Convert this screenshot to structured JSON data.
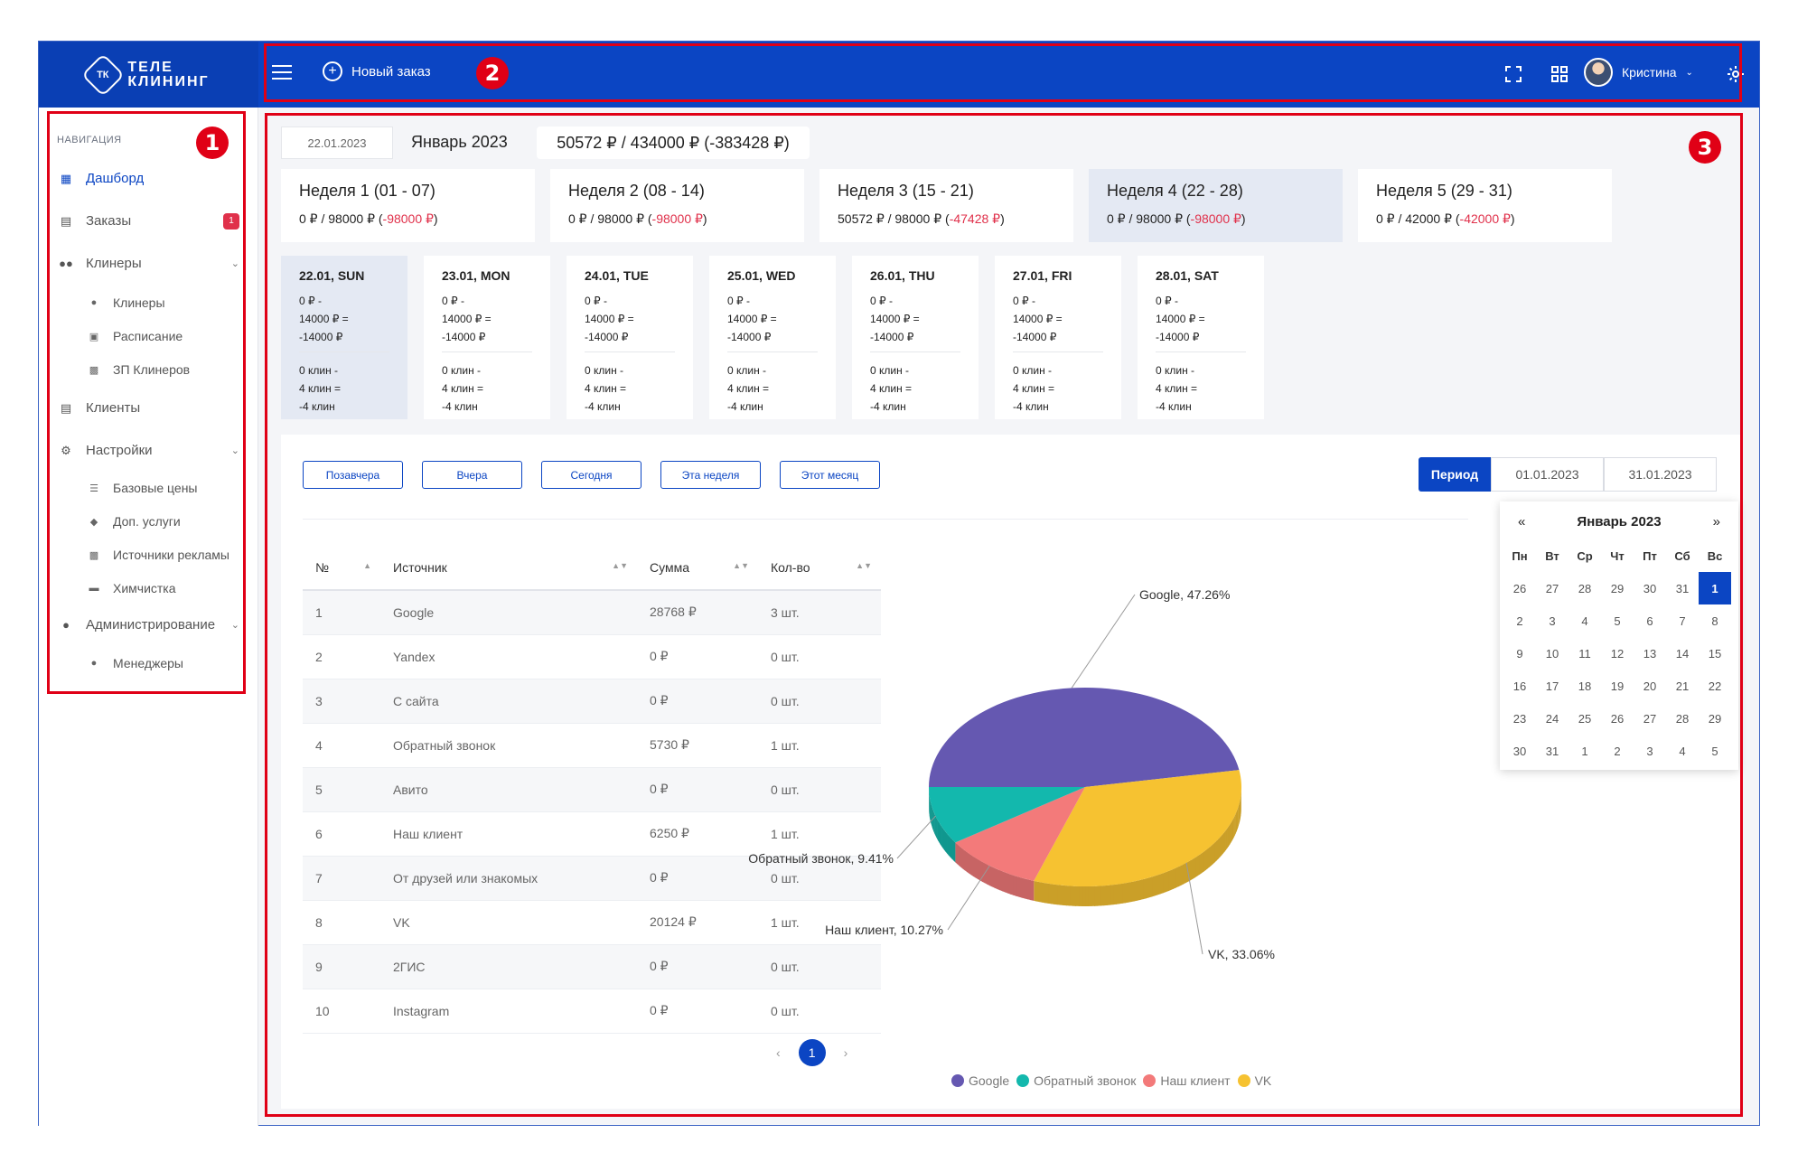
{
  "header": {
    "logo_mark": "ТК",
    "logo_line1": "ТЕЛЕ",
    "logo_line2": "КЛИНИНГ",
    "new_order": "Новый заказ",
    "user_name": "Кристина"
  },
  "sidebar": {
    "title": "НАВИГАЦИЯ",
    "dashboard": "Дашборд",
    "orders": "Заказы",
    "orders_badge": "1",
    "cleaners": "Клинеры",
    "cleaners_sub": [
      "Клинеры",
      "Расписание",
      "ЗП Клинеров"
    ],
    "clients": "Клиенты",
    "settings": "Настройки",
    "settings_sub": [
      "Базовые цены",
      "Доп. услуги",
      "Источники рекламы",
      "Химчистка"
    ],
    "admin": "Администрирование",
    "admin_sub": [
      "Менеджеры"
    ]
  },
  "summary": {
    "date": "22.01.2023",
    "month": "Январь 2023",
    "total": "50572 ₽ / 434000 ₽ (-383428 ₽)"
  },
  "weeks": [
    {
      "title": "Неделя 1 (01 - 07)",
      "value": "0 ₽ / 98000 ₽ (",
      "diff": "-98000 ₽",
      "close": ")"
    },
    {
      "title": "Неделя 2 (08 - 14)",
      "value": "0 ₽ / 98000 ₽ (",
      "diff": "-98000 ₽",
      "close": ")"
    },
    {
      "title": "Неделя 3 (15 - 21)",
      "value": "50572 ₽ / 98000 ₽ (",
      "diff": "-47428 ₽",
      "close": ")"
    },
    {
      "title": "Неделя 4 (22 - 28)",
      "value": "0 ₽ / 98000 ₽ (",
      "diff": "-98000 ₽",
      "close": ")"
    },
    {
      "title": "Неделя 5 (29 - 31)",
      "value": "0 ₽ / 42000 ₽ (",
      "diff": "-42000 ₽",
      "close": ")"
    }
  ],
  "days": [
    {
      "title": "22.01, SUN",
      "l1": "0 ₽ -",
      "l2": "14000 ₽ =",
      "l3": "-14000 ₽",
      "l4": "0 клин -",
      "l5": "4 клин =",
      "l6": "-4 клин"
    },
    {
      "title": "23.01, MON",
      "l1": "0 ₽ -",
      "l2": "14000 ₽ =",
      "l3": "-14000 ₽",
      "l4": "0 клин -",
      "l5": "4 клин =",
      "l6": "-4 клин"
    },
    {
      "title": "24.01, TUE",
      "l1": "0 ₽ -",
      "l2": "14000 ₽ =",
      "l3": "-14000 ₽",
      "l4": "0 клин -",
      "l5": "4 клин =",
      "l6": "-4 клин"
    },
    {
      "title": "25.01, WED",
      "l1": "0 ₽ -",
      "l2": "14000 ₽ =",
      "l3": "-14000 ₽",
      "l4": "0 клин -",
      "l5": "4 клин =",
      "l6": "-4 клин"
    },
    {
      "title": "26.01, THU",
      "l1": "0 ₽ -",
      "l2": "14000 ₽ =",
      "l3": "-14000 ₽",
      "l4": "0 клин -",
      "l5": "4 клин =",
      "l6": "-4 клин"
    },
    {
      "title": "27.01, FRI",
      "l1": "0 ₽ -",
      "l2": "14000 ₽ =",
      "l3": "-14000 ₽",
      "l4": "0 клин -",
      "l5": "4 клин =",
      "l6": "-4 клин"
    },
    {
      "title": "28.01, SAT",
      "l1": "0 ₽ -",
      "l2": "14000 ₽ =",
      "l3": "-14000 ₽",
      "l4": "0 клин -",
      "l5": "4 клин =",
      "l6": "-4 клин"
    }
  ],
  "filters": {
    "buttons": [
      "Позавчера",
      "Вчера",
      "Сегодня",
      "Эта неделя",
      "Этот месяц"
    ],
    "period": "Период",
    "date_from": "01.01.2023",
    "date_to": "31.01.2023"
  },
  "table": {
    "headers": [
      "№",
      "Источник",
      "Сумма",
      "Кол-во"
    ],
    "rows": [
      [
        "1",
        "Google",
        "28768 ₽",
        "3 шт."
      ],
      [
        "2",
        "Yandex",
        "0 ₽",
        "0 шт."
      ],
      [
        "3",
        "С сайта",
        "0 ₽",
        "0 шт."
      ],
      [
        "4",
        "Обратный звонок",
        "5730 ₽",
        "1 шт."
      ],
      [
        "5",
        "Авито",
        "0 ₽",
        "0 шт."
      ],
      [
        "6",
        "Наш клиент",
        "6250 ₽",
        "1 шт."
      ],
      [
        "7",
        "От друзей или знакомых",
        "0 ₽",
        "0 шт."
      ],
      [
        "8",
        "VK",
        "20124 ₽",
        "1 шт."
      ],
      [
        "9",
        "2ГИС",
        "0 ₽",
        "0 шт."
      ],
      [
        "10",
        "Instagram",
        "0 ₽",
        "0 шт."
      ]
    ],
    "page": "1",
    "prev": "‹",
    "next": "›"
  },
  "calendar": {
    "prev": "«",
    "title": "Январь 2023",
    "next": "»",
    "weekdays": [
      "Пн",
      "Вт",
      "Ср",
      "Чт",
      "Пт",
      "Сб",
      "Вс"
    ],
    "days": [
      "26",
      "27",
      "28",
      "29",
      "30",
      "31",
      "1",
      "2",
      "3",
      "4",
      "5",
      "6",
      "7",
      "8",
      "9",
      "10",
      "11",
      "12",
      "13",
      "14",
      "15",
      "16",
      "17",
      "18",
      "19",
      "20",
      "21",
      "22",
      "23",
      "24",
      "25",
      "26",
      "27",
      "28",
      "29",
      "30",
      "31",
      "1",
      "2",
      "3",
      "4",
      "5"
    ],
    "selected_index": 6
  },
  "chart_data": {
    "type": "pie",
    "categories": [
      "Google",
      "VK",
      "Наш клиент",
      "Обратный звонок"
    ],
    "values": [
      47.26,
      33.06,
      10.27,
      9.41
    ],
    "labels": [
      "Google, 47.26%",
      "VK, 33.06%",
      "Наш клиент, 10.27%",
      "Обратный звонок, 9.41%"
    ],
    "colors": [
      "#6558b1",
      "#f6c231",
      "#f37a7a",
      "#13b8ad"
    ],
    "legend": [
      "Google",
      "Обратный звонок",
      "Наш клиент",
      "VK"
    ],
    "legend_colors": [
      "#6558b1",
      "#13b8ad",
      "#f37a7a",
      "#f6c231"
    ],
    "legend_placement": "bottom"
  },
  "annotations": [
    "1",
    "2",
    "3"
  ]
}
